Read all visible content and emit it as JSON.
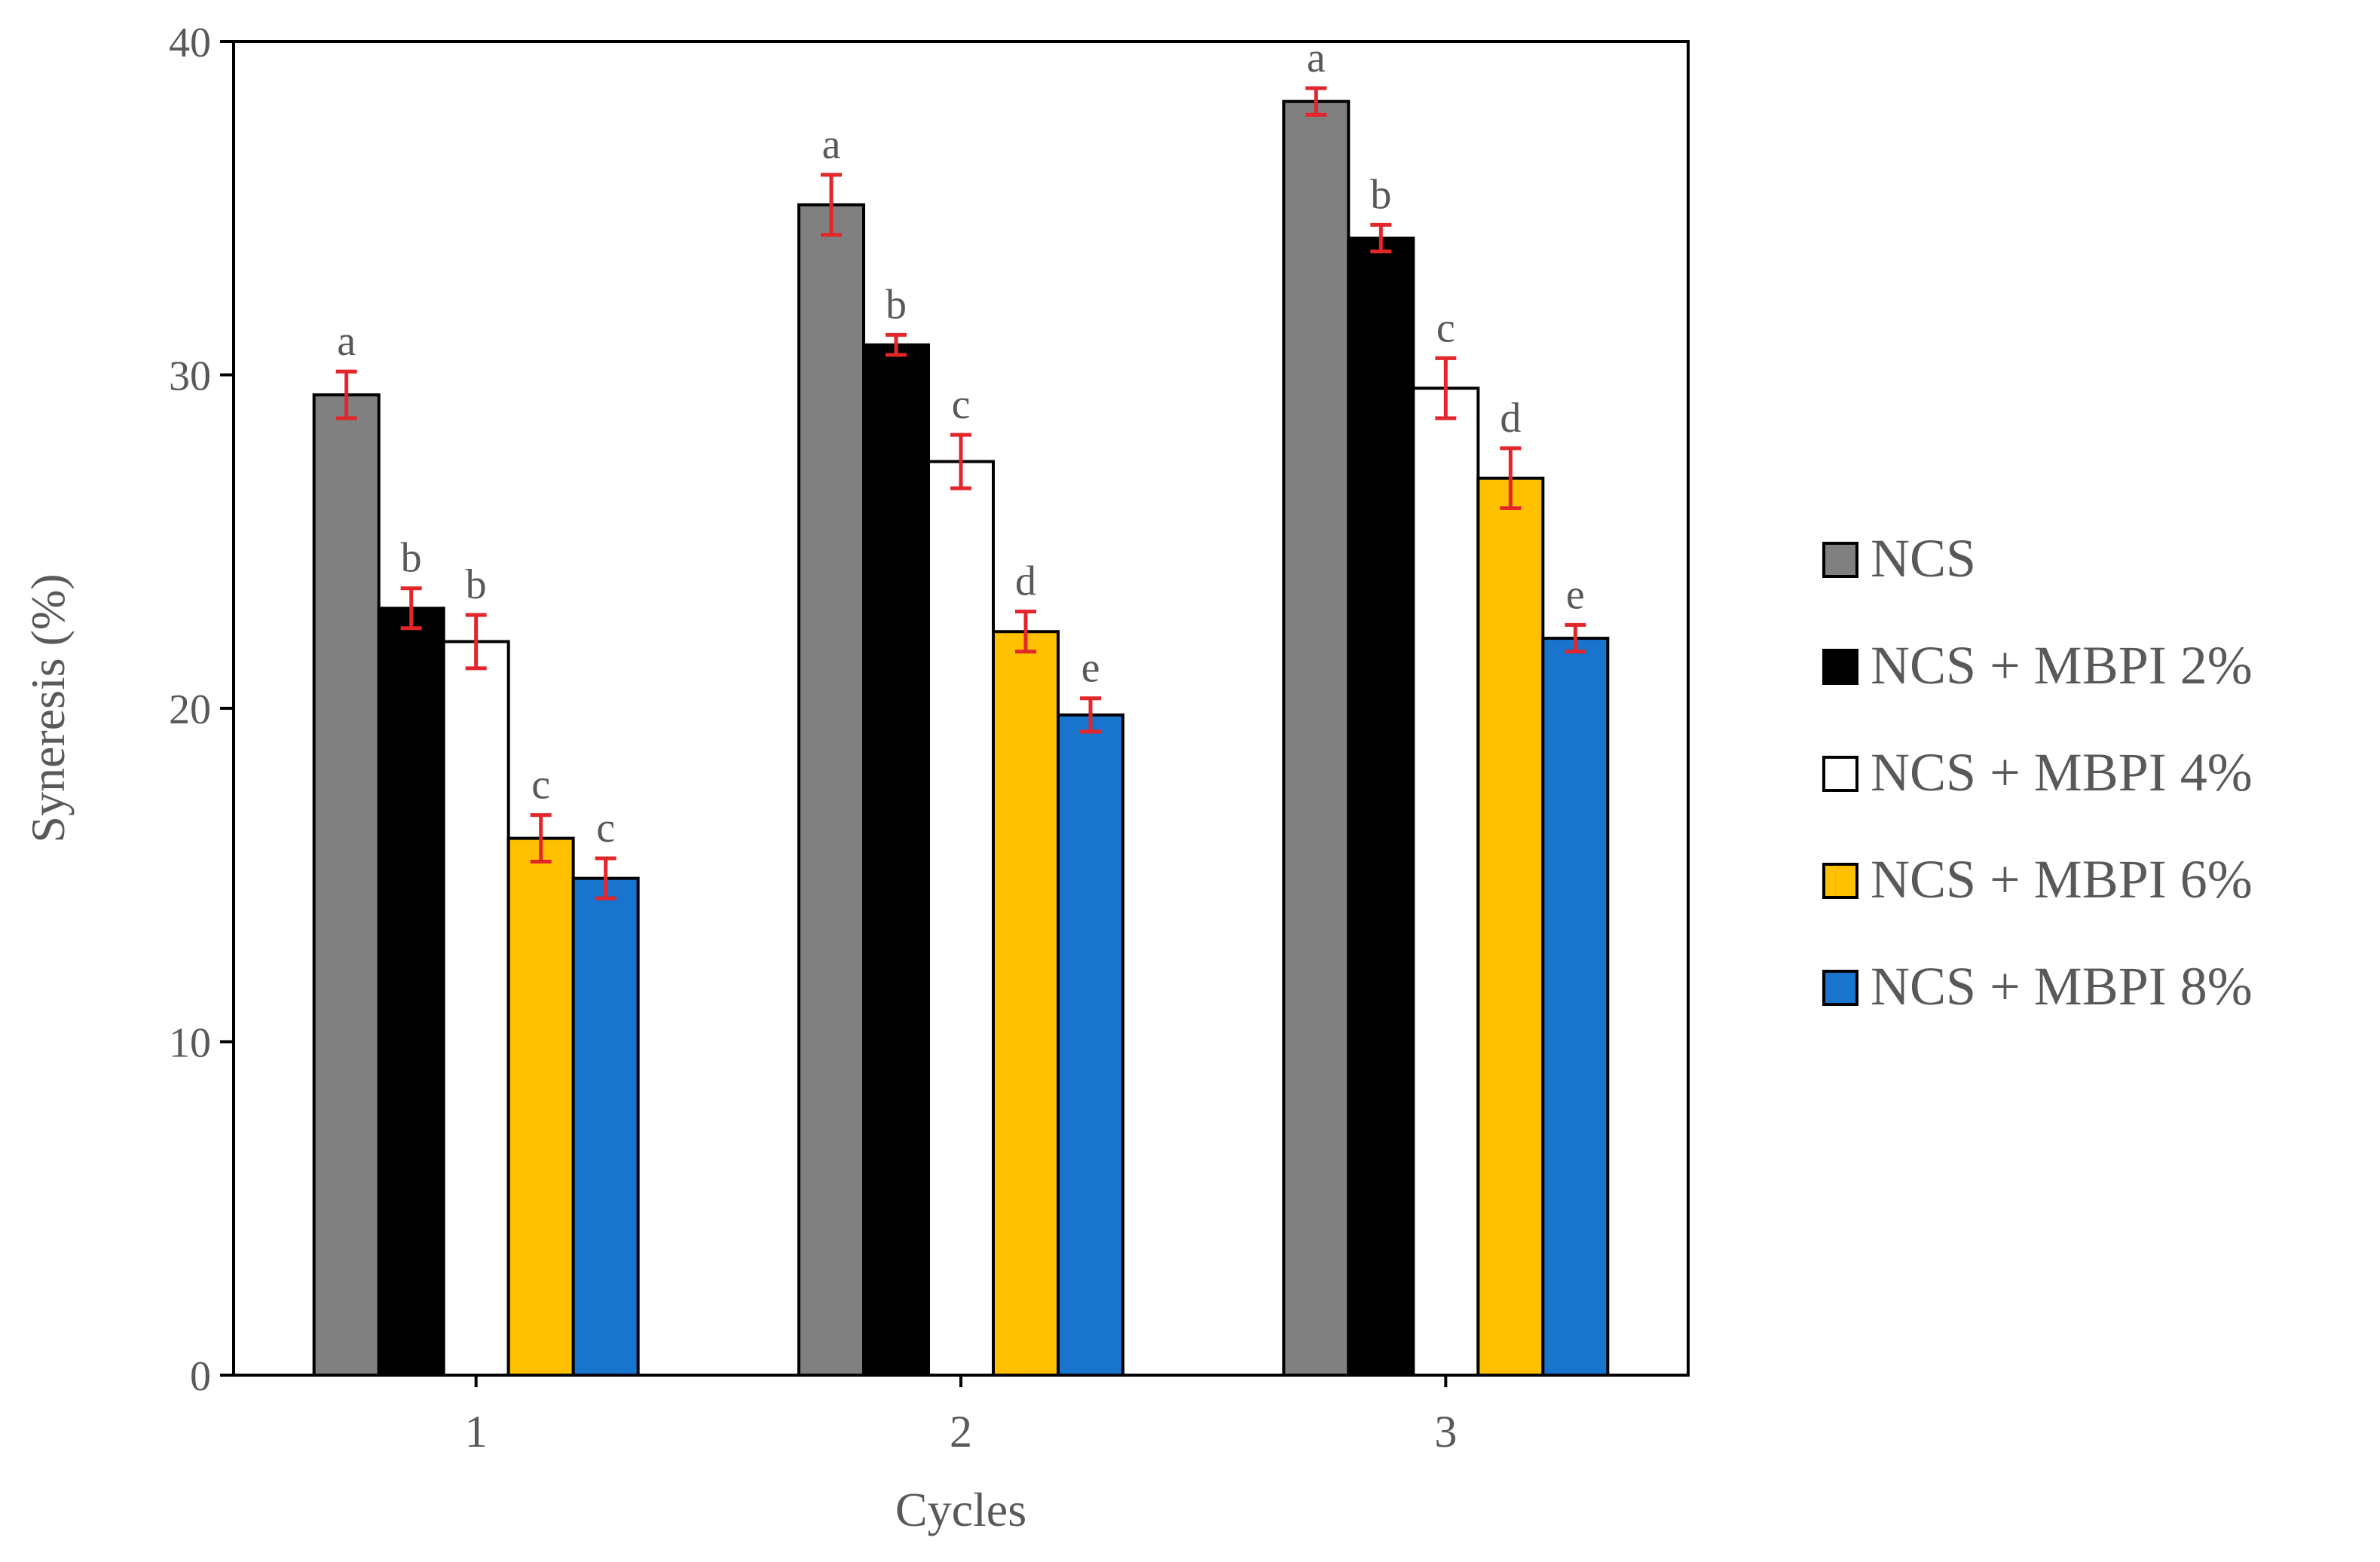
{
  "chart_data": {
    "type": "bar",
    "title": "",
    "xlabel": "Cycles",
    "ylabel": "Syneresis (%)",
    "ylim": [
      0,
      40
    ],
    "yticks": [
      0,
      10,
      20,
      30,
      40
    ],
    "categories": [
      "1",
      "2",
      "3"
    ],
    "grid": false,
    "legend_position": "right",
    "series": [
      {
        "name": "NCS",
        "color": "#808080",
        "values": [
          29.4,
          35.1,
          38.2
        ],
        "errors": [
          0.7,
          0.9,
          0.4
        ],
        "letters": [
          "a",
          "a",
          "a"
        ]
      },
      {
        "name": "NCS + MBPI 2%",
        "color": "#000000",
        "values": [
          23.0,
          30.9,
          34.1
        ],
        "errors": [
          0.6,
          0.3,
          0.4
        ],
        "letters": [
          "b",
          "b",
          "b"
        ]
      },
      {
        "name": "NCS + MBPI 4%",
        "color": "#ffffff",
        "values": [
          22.0,
          27.4,
          29.6
        ],
        "errors": [
          0.8,
          0.8,
          0.9
        ],
        "letters": [
          "b",
          "c",
          "c"
        ]
      },
      {
        "name": "NCS + MBPI 6%",
        "color": "#ffc000",
        "values": [
          16.1,
          22.3,
          26.9
        ],
        "errors": [
          0.7,
          0.6,
          0.9
        ],
        "letters": [
          "c",
          "d",
          "d"
        ]
      },
      {
        "name": "NCS + MBPI 8%",
        "color": "#1874cd",
        "values": [
          14.9,
          19.8,
          22.1
        ],
        "errors": [
          0.6,
          0.5,
          0.4
        ],
        "letters": [
          "c",
          "e",
          "e"
        ]
      }
    ],
    "error_bar_color": "#e3262b"
  }
}
